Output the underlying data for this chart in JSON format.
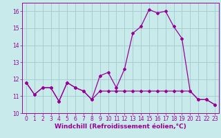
{
  "x": [
    0,
    1,
    2,
    3,
    4,
    5,
    6,
    7,
    8,
    9,
    10,
    11,
    12,
    13,
    14,
    15,
    16,
    17,
    18,
    19,
    20,
    21,
    22,
    23
  ],
  "line1": [
    11.8,
    11.1,
    11.5,
    11.5,
    10.7,
    11.8,
    11.5,
    11.3,
    10.8,
    12.2,
    12.4,
    11.5,
    12.6,
    14.7,
    15.1,
    16.1,
    15.9,
    16.0,
    15.1,
    14.4,
    11.3,
    10.8,
    10.8,
    10.5
  ],
  "line2": [
    11.8,
    11.1,
    11.5,
    11.5,
    10.7,
    11.8,
    11.5,
    11.3,
    10.8,
    11.3,
    11.3,
    11.3,
    11.3,
    11.3,
    11.3,
    11.3,
    11.3,
    11.3,
    11.3,
    11.3,
    11.3,
    10.8,
    10.8,
    10.5
  ],
  "ylim": [
    10,
    16.5
  ],
  "xlim": [
    -0.5,
    23.5
  ],
  "yticks": [
    10,
    11,
    12,
    13,
    14,
    15,
    16
  ],
  "xticks": [
    0,
    1,
    2,
    3,
    4,
    5,
    6,
    7,
    8,
    9,
    10,
    11,
    12,
    13,
    14,
    15,
    16,
    17,
    18,
    19,
    20,
    21,
    22,
    23
  ],
  "xlabel": "Windchill (Refroidissement éolien,°C)",
  "color": "#990099",
  "bg_color": "#c8eaea",
  "grid_color": "#a0cccc",
  "marker": "D",
  "marker_size": 2.0,
  "line_width": 0.9,
  "xlabel_fontsize": 6.5,
  "tick_fontsize": 5.5
}
